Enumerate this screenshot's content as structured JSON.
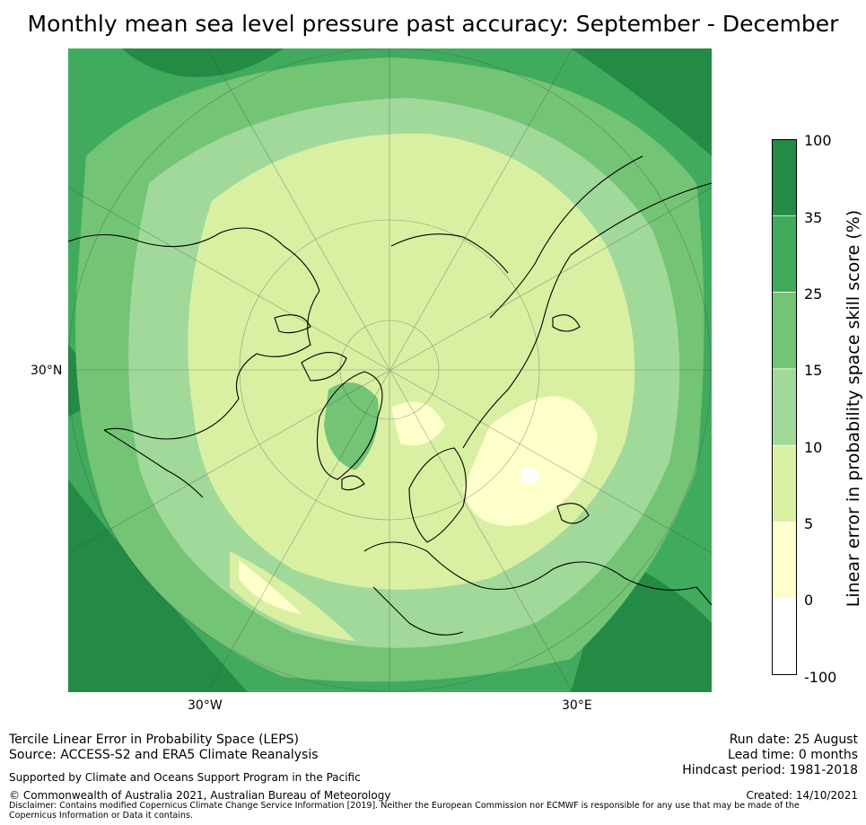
{
  "title": "Monthly mean sea level pressure past accuracy: September - December",
  "map": {
    "lat_label": "30°N",
    "lon_labels": [
      "30°W",
      "30°E"
    ],
    "colors": {
      "ocean_deep": "#238b45",
      "band_35": "#41ab5d",
      "band_25": "#74c476",
      "band_15": "#a1d99b",
      "band_10": "#d9f0a3",
      "band_5": "#ffffcc",
      "band_0": "#ffffff",
      "coast": "#000000"
    }
  },
  "colorbar": {
    "label": "Linear error in probability space skill score (%)",
    "ticks": [
      "100",
      "35",
      "25",
      "15",
      "10",
      "5",
      "0",
      "-100"
    ],
    "colors": [
      "#238b45",
      "#41ab5d",
      "#74c476",
      "#a1d99b",
      "#d9f0a3",
      "#ffffcc",
      "#ffffff"
    ]
  },
  "footer": {
    "line1": "Tercile Linear Error in Probability Space (LEPS)",
    "line2": "Source: ACCESS-S2 and ERA5 Climate Reanalysis",
    "support": "Supported by Climate and Oceans Support Program in the Pacific",
    "copyright": "© Commonwealth of Australia 2021, Australian Bureau of Meteorology",
    "disclaimer": "Disclaimer: Contains modified Copernicus Climate Change Service Information [2019]. Neither the European Commission nor ECMWF is responsible for any use that may be made of the Copernicus Information or Data it contains.",
    "run_date": "Run date: 25 August",
    "lead_time": "Lead time: 0 months",
    "hindcast": "Hindcast period: 1981-2018",
    "created": "Created: 14/10/2021"
  }
}
